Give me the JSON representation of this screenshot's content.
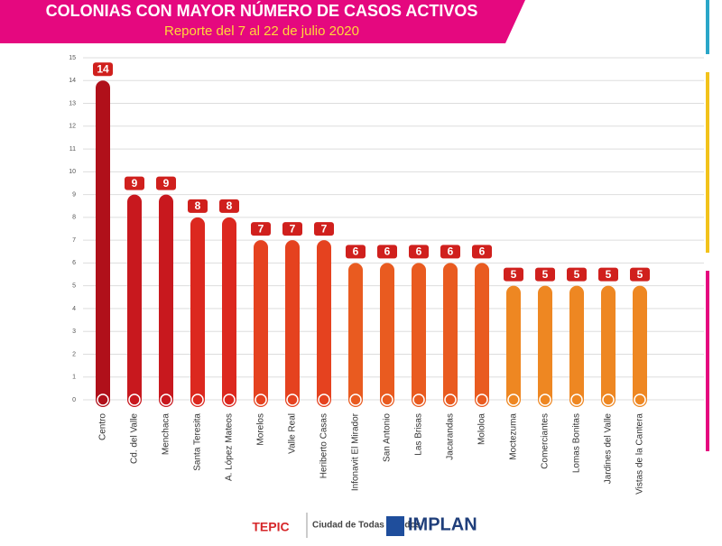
{
  "chart_data": {
    "type": "bar",
    "title": "COLONIAS CON MAYOR NÚMERO DE CASOS ACTIVOS",
    "subtitle": "Reporte del 7 al 22 de julio 2020",
    "categories": [
      "Centro",
      "Cd. del Valle",
      "Menchaca",
      "Santa Teresita",
      "A. López Mateos",
      "Morelos",
      "Valle Real",
      "Heriberto Casas",
      "Infonavit El Mirador",
      "San Antonio",
      "Las Brisas",
      "Jacarandas",
      "Mololoa",
      "Moctezuma",
      "Comerciantes",
      "Lomas Bonitas",
      "Jardines del Valle",
      "Vistas de la Cantera"
    ],
    "values": [
      14,
      9,
      9,
      8,
      8,
      7,
      7,
      7,
      6,
      6,
      6,
      6,
      6,
      5,
      5,
      5,
      5,
      5
    ],
    "colors": [
      "#b0101a",
      "#c8181e",
      "#c8181e",
      "#dc281f",
      "#dc281f",
      "#e5421f",
      "#e5421f",
      "#e5421f",
      "#e95b20",
      "#e95b20",
      "#e95b20",
      "#e95b20",
      "#e95b20",
      "#ee8722",
      "#ee8722",
      "#ee8722",
      "#ee8722",
      "#ee8722"
    ],
    "ylim": [
      0,
      15
    ],
    "yticks": [
      0,
      1,
      2,
      3,
      4,
      5,
      6,
      7,
      8,
      9,
      10,
      11,
      12,
      13,
      14,
      15
    ],
    "grid": true,
    "footer": {
      "logo_left": "TEPIC",
      "tagline": "Ciudad de Todas y Todos",
      "logo_right": "IMPLAN"
    }
  }
}
